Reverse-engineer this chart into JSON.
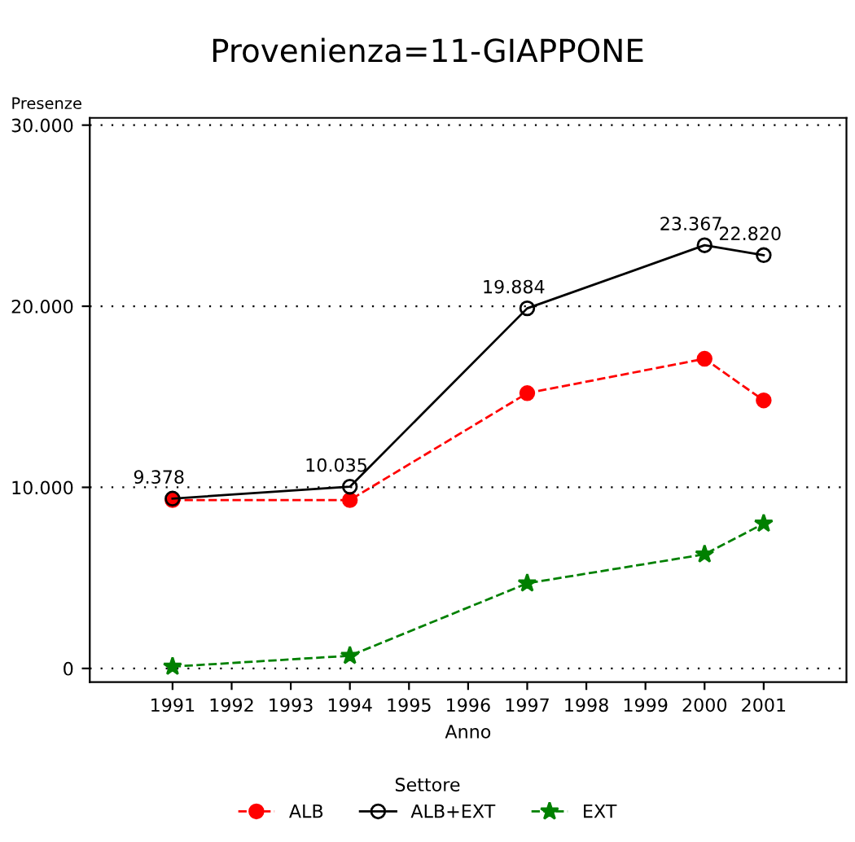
{
  "chart_data": {
    "type": "line",
    "title": "Provenienza=11-GIAPPONE",
    "xlabel": "Anno",
    "ylabel": "Presenze",
    "legend_title": "Settore",
    "x": [
      1991,
      1994,
      1997,
      2000,
      2001
    ],
    "series": [
      {
        "name": "ALB",
        "color": "#ff0000",
        "marker": "circle",
        "line_style": "dashed",
        "values": [
          9300,
          9300,
          15200,
          17100,
          14800
        ]
      },
      {
        "name": "ALB+EXT",
        "color": "#000000",
        "marker": "circle",
        "line_style": "solid",
        "values": [
          9378,
          10035,
          19884,
          23367,
          22820
        ],
        "value_labels": [
          "9.378",
          "10.035",
          "19.884",
          "23.367",
          "22.820"
        ]
      },
      {
        "name": "EXT",
        "color": "#008000",
        "marker": "star",
        "line_style": "dashed",
        "values": [
          100,
          700,
          4700,
          6300,
          8000
        ]
      }
    ],
    "xlim": [
      1989.6,
      2002.4
    ],
    "xticks": [
      1991,
      1992,
      1993,
      1994,
      1995,
      1996,
      1997,
      1998,
      1999,
      2000,
      2001
    ],
    "ylim": [
      -750,
      30400
    ],
    "yticks": [
      {
        "value": 0,
        "label": "0"
      },
      {
        "value": 10000,
        "label": "10.000"
      },
      {
        "value": 20000,
        "label": "20.000"
      },
      {
        "value": 30000,
        "label": "30.000"
      }
    ],
    "grid": "y",
    "legend": "bottom"
  }
}
